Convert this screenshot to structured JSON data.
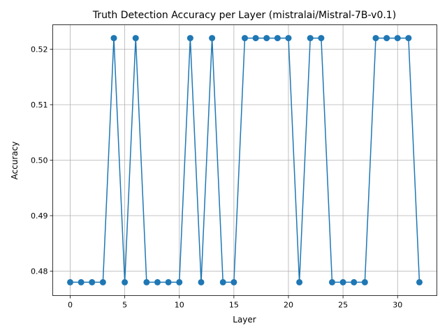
{
  "chart_data": {
    "type": "line",
    "title": "Truth Detection Accuracy per Layer (mistralai/Mistral-7B-v0.1)",
    "xlabel": "Layer",
    "ylabel": "Accuracy",
    "xlim": [
      -1.6,
      33.6
    ],
    "ylim": [
      0.4756,
      0.5244
    ],
    "xticks": [
      0,
      5,
      10,
      15,
      20,
      25,
      30
    ],
    "xtick_labels": [
      "0",
      "5",
      "10",
      "15",
      "20",
      "25",
      "30"
    ],
    "yticks": [
      0.48,
      0.49,
      0.5,
      0.51,
      0.52
    ],
    "ytick_labels": [
      "0.48",
      "0.49",
      "0.50",
      "0.51",
      "0.52"
    ],
    "grid": true,
    "series": [
      {
        "color": "#1f77b4",
        "marker": "circle",
        "x": [
          0,
          1,
          2,
          3,
          4,
          5,
          6,
          7,
          8,
          9,
          10,
          11,
          12,
          13,
          14,
          15,
          16,
          17,
          18,
          19,
          20,
          21,
          22,
          23,
          24,
          25,
          26,
          27,
          28,
          29,
          30,
          31,
          32
        ],
        "values": [
          0.478,
          0.478,
          0.478,
          0.478,
          0.522,
          0.478,
          0.522,
          0.478,
          0.478,
          0.478,
          0.478,
          0.522,
          0.478,
          0.522,
          0.478,
          0.478,
          0.522,
          0.522,
          0.522,
          0.522,
          0.522,
          0.478,
          0.522,
          0.522,
          0.478,
          0.478,
          0.478,
          0.478,
          0.522,
          0.522,
          0.522,
          0.522,
          0.478
        ]
      }
    ]
  }
}
